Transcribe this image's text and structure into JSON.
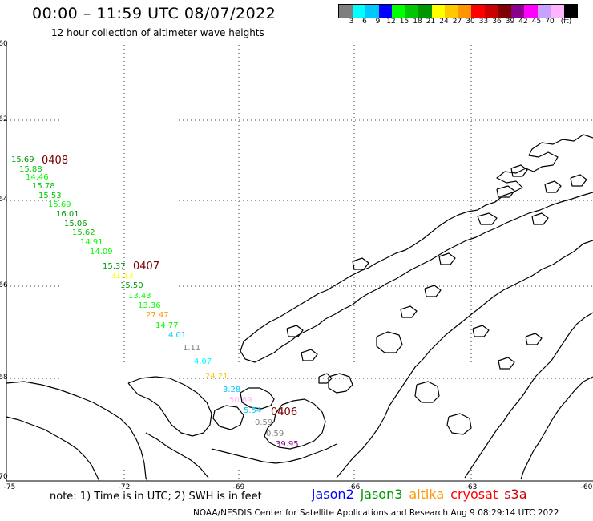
{
  "header": {
    "title": "00:00 – 11:59 UTC 08/07/2022",
    "subtitle": "12 hour collection of altimeter wave heights"
  },
  "colorbar": {
    "colors": [
      "#7f7f7f",
      "#00ffff",
      "#00c8ff",
      "#0000ff",
      "#00ff00",
      "#00c800",
      "#009600",
      "#ffff00",
      "#ffc800",
      "#ff9600",
      "#ff0000",
      "#c80000",
      "#7f0000",
      "#8b008b",
      "#ff00ff",
      "#c8a0ff",
      "#ffb4ff",
      "#000000"
    ],
    "labels": [
      "3",
      "6",
      "9",
      "12",
      "15",
      "18",
      "21",
      "24",
      "27",
      "30",
      "33",
      "36",
      "39",
      "42",
      "45",
      "70",
      "(ft)"
    ]
  },
  "axes": {
    "lat_labels": [
      "-60",
      "-62",
      "-64",
      "-66",
      "-68",
      "-70"
    ],
    "lon_labels": [
      "-75",
      "-72",
      "-69",
      "-66",
      "-63",
      "-60"
    ]
  },
  "passes": [
    "0408",
    "0407",
    "0406"
  ],
  "wave_heights": [
    {
      "v": "15.69",
      "c": "#009600"
    },
    {
      "v": "15.88",
      "c": "#00c800"
    },
    {
      "v": "14.46",
      "c": "#00ff00"
    },
    {
      "v": "15.78",
      "c": "#00c800"
    },
    {
      "v": "15.53",
      "c": "#00c800"
    },
    {
      "v": "15.69",
      "c": "#00ff00"
    },
    {
      "v": "16.01",
      "c": "#009600"
    },
    {
      "v": "15.06",
      "c": "#009600"
    },
    {
      "v": "15.62",
      "c": "#00c800"
    },
    {
      "v": "14.91",
      "c": "#00ff00"
    },
    {
      "v": "14.09",
      "c": "#00ff00"
    },
    {
      "v": "15.37",
      "c": "#009600"
    },
    {
      "v": "31.13",
      "c": "#ffff00"
    },
    {
      "v": "15.50",
      "c": "#009600"
    },
    {
      "v": "13.43",
      "c": "#00ff00"
    },
    {
      "v": "13.36",
      "c": "#00ff00"
    },
    {
      "v": "27.47",
      "c": "#ff9600"
    },
    {
      "v": "14.77",
      "c": "#00ff00"
    },
    {
      "v": "4.01",
      "c": "#00c8ff"
    },
    {
      "v": "1.11",
      "c": "#7f7f7f"
    },
    {
      "v": "4.07",
      "c": "#00ffff"
    },
    {
      "v": "24.21",
      "c": "#ffc800"
    },
    {
      "v": "3.28",
      "c": "#00c8ff"
    },
    {
      "v": "50.69",
      "c": "#ffb4ff"
    },
    {
      "v": "5.54",
      "c": "#00c8ff"
    },
    {
      "v": "0.59",
      "c": "#7f7f7f"
    },
    {
      "v": "0.59",
      "c": "#7f7f7f"
    },
    {
      "v": "39.95",
      "c": "#8b008b"
    }
  ],
  "footer": {
    "note": "note: 1) Time is in UTC; 2) SWH is in feet",
    "satellites": [
      {
        "name": "jason2",
        "color": "#0000ff"
      },
      {
        "name": "jason3",
        "color": "#009600"
      },
      {
        "name": "altika",
        "color": "#ff9600"
      },
      {
        "name": "cryosat",
        "color": "#ff0000"
      },
      {
        "name": "s3a",
        "color": "#c80000"
      }
    ],
    "credit": "NOAA/NESDIS Center for Satellite Applications and Research   Aug  9 08:29:14 UTC 2022"
  }
}
